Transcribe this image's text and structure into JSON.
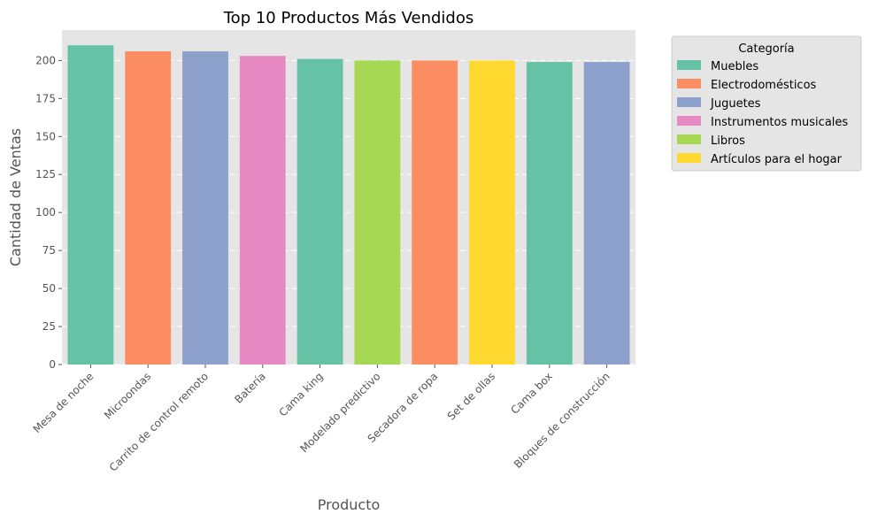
{
  "chart_data": {
    "type": "bar",
    "title": "Top 10 Productos Más Vendidos",
    "xlabel": "Producto",
    "ylabel": "Cantidad de Ventas",
    "ylim": [
      0,
      220
    ],
    "yticks": [
      0,
      25,
      50,
      75,
      100,
      125,
      150,
      175,
      200
    ],
    "grid": true,
    "legend_title": "Categoría",
    "legend_position": "outside-top-right",
    "categories": [
      "Mesa de noche",
      "Microondas",
      "Carrito de control remoto",
      "Batería",
      "Cama king",
      "Modelado predictivo",
      "Secadora de ropa",
      "Set de ollas",
      "Cama box",
      "Bloques de construcción"
    ],
    "values": [
      210,
      206,
      206,
      203,
      201,
      200,
      200,
      200,
      199,
      199
    ],
    "bar_categories": [
      "Muebles",
      "Electrodomésticos",
      "Juguetes",
      "Instrumentos musicales",
      "Muebles",
      "Libros",
      "Electrodomésticos",
      "Artículos para el hogar",
      "Muebles",
      "Juguetes"
    ],
    "legend": [
      {
        "name": "Muebles",
        "color": "#66c2a5"
      },
      {
        "name": "Electrodomésticos",
        "color": "#fc8d62"
      },
      {
        "name": "Juguetes",
        "color": "#8da0cb"
      },
      {
        "name": "Instrumentos musicales",
        "color": "#e78ac3"
      },
      {
        "name": "Libros",
        "color": "#a6d854"
      },
      {
        "name": "Artículos para el hogar",
        "color": "#ffd92f"
      }
    ]
  }
}
